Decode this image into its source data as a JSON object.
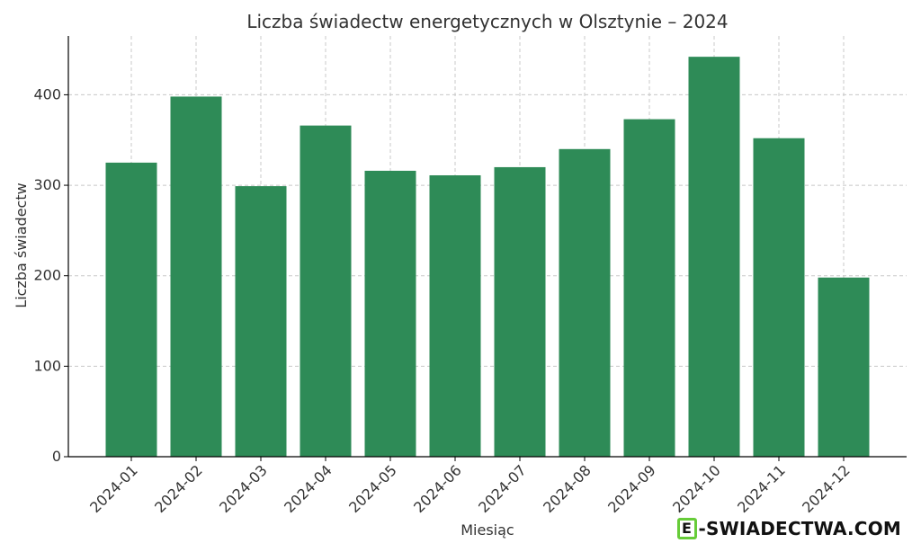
{
  "chart_data": {
    "type": "bar",
    "title": "Liczba świadectw energetycznych w Olsztynie – 2024",
    "xlabel": "Miesiąc",
    "ylabel": "Liczba świadectw",
    "categories": [
      "2024-01",
      "2024-02",
      "2024-03",
      "2024-04",
      "2024-05",
      "2024-06",
      "2024-07",
      "2024-08",
      "2024-09",
      "2024-10",
      "2024-11",
      "2024-12"
    ],
    "values": [
      325,
      398,
      299,
      366,
      316,
      311,
      320,
      340,
      373,
      442,
      352,
      198
    ],
    "ylim": [
      0,
      465
    ],
    "yticks": [
      0,
      100,
      200,
      300,
      400
    ],
    "grid": true,
    "colors": {
      "bar": "#2e8b57",
      "grid": "#c8c8c8",
      "axis": "#000000"
    }
  },
  "watermark": {
    "mark_letter": "E",
    "text": "-SWIADECTWA.COM",
    "color": "#67cc39"
  }
}
